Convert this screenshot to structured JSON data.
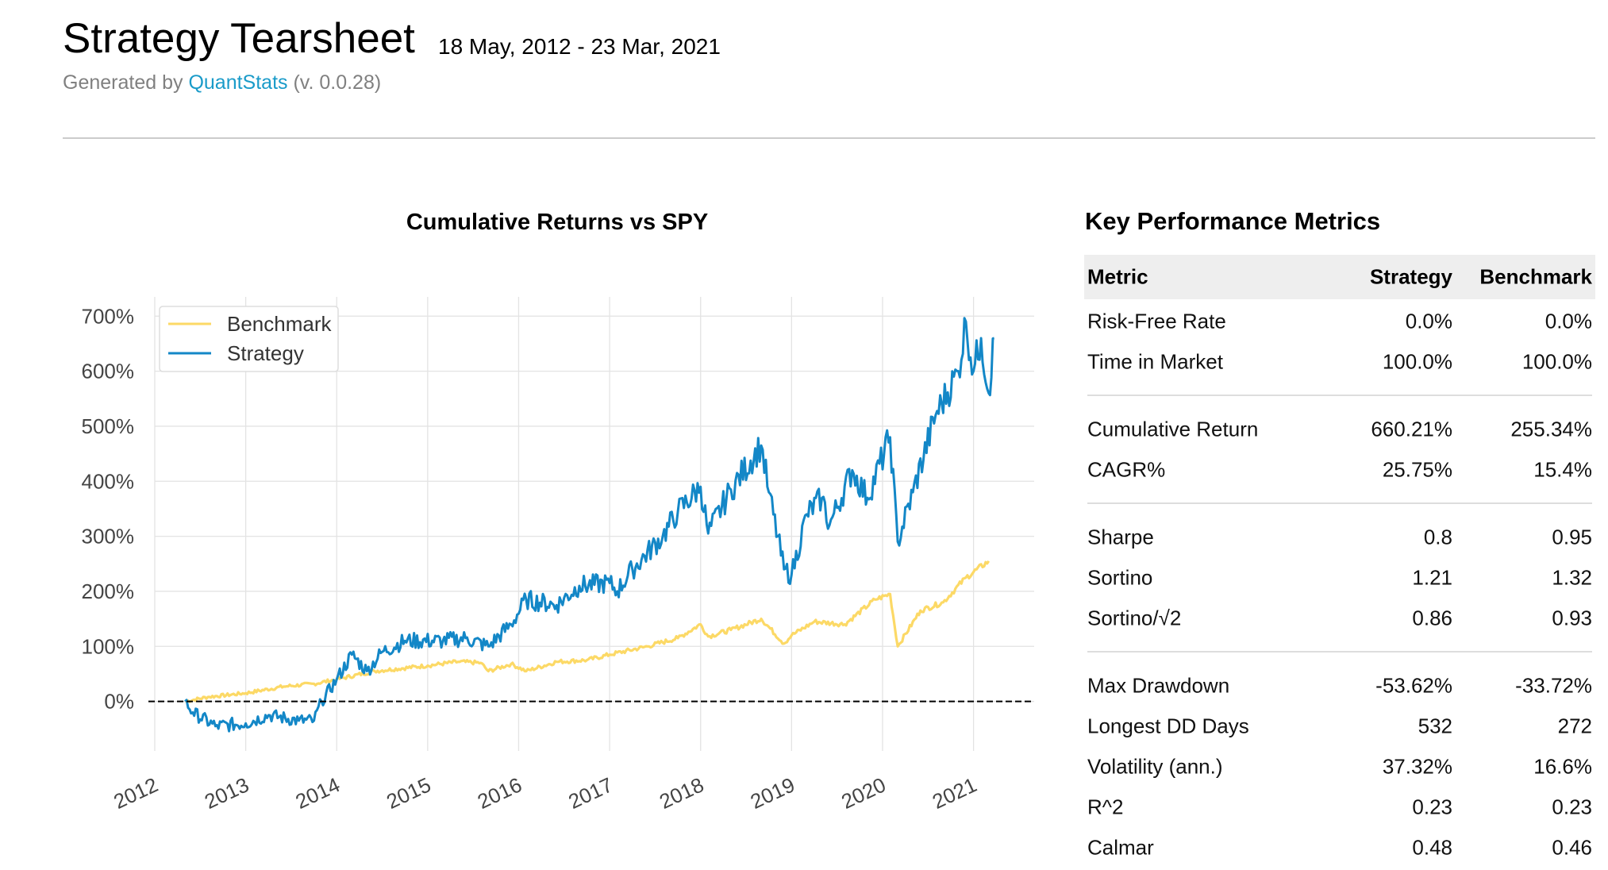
{
  "header": {
    "title": "Strategy Tearsheet",
    "date_range": "18 May, 2012 - 23 Mar, 2021",
    "generated_prefix": "Generated by",
    "generated_link": "QuantStats",
    "generated_version": "(v. 0.0.28)",
    "link_color": "#1a9bc9"
  },
  "chart_data": {
    "type": "line",
    "title": "Cumulative Returns vs SPY",
    "xlabel": "",
    "ylabel": "",
    "ylim": [
      -90,
      735
    ],
    "xlim": [
      "2012-01",
      "2021-09"
    ],
    "grid": true,
    "legend_position": "top-left",
    "y_ticks": [
      "0%",
      "100%",
      "200%",
      "300%",
      "400%",
      "500%",
      "600%",
      "700%"
    ],
    "y_tick_values": [
      0,
      100,
      200,
      300,
      400,
      500,
      600,
      700
    ],
    "x_ticks": [
      "2012",
      "2013",
      "2014",
      "2015",
      "2016",
      "2017",
      "2018",
      "2019",
      "2020",
      "2021"
    ],
    "reference_line": {
      "y": 0,
      "style": "dashed",
      "color": "#000000"
    },
    "series": [
      {
        "name": "Benchmark",
        "color": "#fcd966",
        "x": [
          "2012-05",
          "2012-08",
          "2013-01",
          "2013-06",
          "2013-10",
          "2014-01",
          "2014-06",
          "2015-01",
          "2015-05",
          "2015-08",
          "2015-09",
          "2015-12",
          "2016-02",
          "2016-06",
          "2016-10",
          "2017-01",
          "2017-06",
          "2017-10",
          "2018-01",
          "2018-02",
          "2018-05",
          "2018-09",
          "2018-12",
          "2019-01",
          "2019-04",
          "2019-08",
          "2019-12",
          "2020-02",
          "2020-03",
          "2020-06",
          "2020-09",
          "2020-12",
          "2021-03"
        ],
        "values": [
          0,
          8,
          15,
          27,
          32,
          40,
          55,
          65,
          72,
          70,
          55,
          68,
          55,
          72,
          75,
          85,
          100,
          115,
          140,
          118,
          130,
          150,
          105,
          120,
          145,
          140,
          185,
          195,
          100,
          165,
          180,
          225,
          255
        ]
      },
      {
        "name": "Strategy",
        "color": "#1387c7",
        "x": [
          "2012-05",
          "2012-06",
          "2012-09",
          "2013-01",
          "2013-04",
          "2013-08",
          "2013-10",
          "2013-11",
          "2014-01",
          "2014-03",
          "2014-05",
          "2014-07",
          "2014-10",
          "2015-03",
          "2015-06",
          "2015-09",
          "2015-12",
          "2016-02",
          "2016-06",
          "2016-09",
          "2017-01",
          "2017-02",
          "2017-04",
          "2017-08",
          "2017-10",
          "2018-01",
          "2018-02",
          "2018-05",
          "2018-09",
          "2018-10",
          "2018-12",
          "2019-01",
          "2019-03",
          "2019-05",
          "2019-06",
          "2019-09",
          "2019-11",
          "2020-02",
          "2020-03",
          "2020-05",
          "2020-08",
          "2020-11",
          "2020-12",
          "2021-01",
          "2021-02",
          "2021-03",
          "2021-03-23"
        ],
        "values": [
          0,
          -20,
          -45,
          -40,
          -25,
          -35,
          -35,
          0,
          40,
          85,
          55,
          90,
          110,
          110,
          115,
          100,
          140,
          185,
          175,
          210,
          215,
          200,
          240,
          300,
          345,
          390,
          305,
          385,
          465,
          380,
          240,
          230,
          340,
          370,
          320,
          420,
          370,
          480,
          290,
          380,
          520,
          600,
          690,
          600,
          660,
          560,
          660
        ]
      }
    ]
  },
  "metrics": {
    "title": "Key Performance Metrics",
    "headers": [
      "Metric",
      "Strategy",
      "Benchmark"
    ],
    "groups": [
      [
        [
          "Risk-Free Rate",
          "0.0%",
          "0.0%"
        ],
        [
          "Time in Market",
          "100.0%",
          "100.0%"
        ]
      ],
      [
        [
          "Cumulative Return",
          "660.21%",
          "255.34%"
        ],
        [
          "CAGR%",
          "25.75%",
          "15.4%"
        ]
      ],
      [
        [
          "Sharpe",
          "0.8",
          "0.95"
        ],
        [
          "Sortino",
          "1.21",
          "1.32"
        ],
        [
          "Sortino/√2",
          "0.86",
          "0.93"
        ]
      ],
      [
        [
          "Max Drawdown",
          "-53.62%",
          "-33.72%"
        ],
        [
          "Longest DD Days",
          "532",
          "272"
        ],
        [
          "Volatility (ann.)",
          "37.32%",
          "16.6%"
        ],
        [
          "R^2",
          "0.23",
          "0.23"
        ],
        [
          "Calmar",
          "0.48",
          "0.46"
        ]
      ]
    ]
  }
}
